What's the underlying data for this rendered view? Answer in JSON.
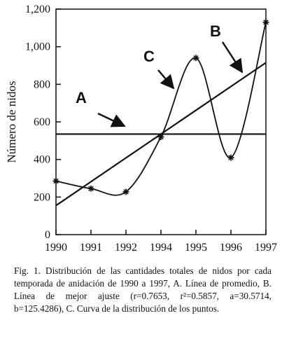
{
  "chart_data": {
    "type": "line",
    "y_label": "Número de nidos",
    "categories": [
      "1990",
      "1991",
      "1992",
      "1994",
      "1995",
      "1996",
      "1997"
    ],
    "series": [
      {
        "name": "Nidos",
        "color": "#111111",
        "values": [
          285,
          245,
          228,
          520,
          940,
          410,
          1130
        ]
      }
    ],
    "lines": [
      {
        "label": "A",
        "values": [
          535,
          535
        ]
      },
      {
        "label": "B",
        "values": [
          155,
          915
        ]
      }
    ],
    "curve_label": "C",
    "ylim": [
      0,
      1200
    ],
    "yticks": [
      0,
      200,
      400,
      600,
      800,
      {
        "value": 1000,
        "label": "1,000"
      },
      {
        "value": 1200,
        "label": "1,200"
      }
    ],
    "caption": "Fig. 1. Distribución de las cantidades totales de nidos por cada temporada de anidación de 1990 a 1997, A. Línea de promedio, B. Línea de mejor ajuste (r=0.7653, r²=0.5857, a=30.5714, b=125.4286), C. Curva de la distribución de los puntos."
  }
}
